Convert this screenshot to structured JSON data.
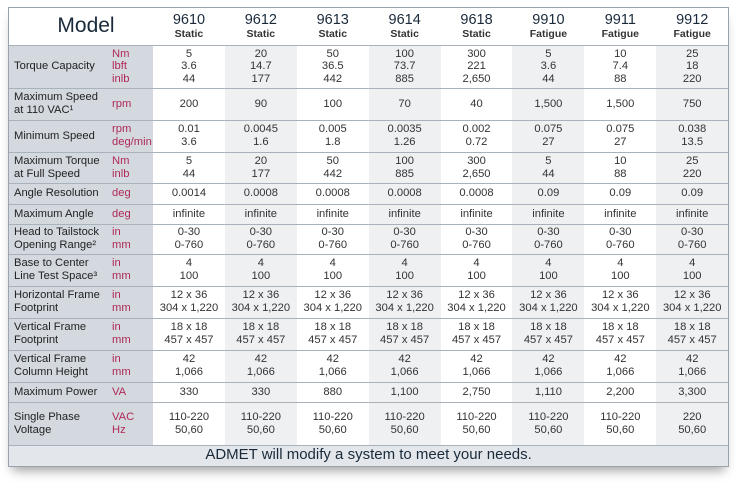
{
  "header": {
    "title": "Model",
    "models": [
      {
        "number": "9610",
        "type": "Static"
      },
      {
        "number": "9612",
        "type": "Static"
      },
      {
        "number": "9613",
        "type": "Static"
      },
      {
        "number": "9614",
        "type": "Static"
      },
      {
        "number": "9618",
        "type": "Static"
      },
      {
        "number": "9910",
        "type": "Fatigue"
      },
      {
        "number": "9911",
        "type": "Fatigue"
      },
      {
        "number": "9912",
        "type": "Fatigue"
      }
    ]
  },
  "rows": [
    {
      "label": "Torque Capacity",
      "units": "Nm\nlbft\ninlb",
      "values": [
        "5\n3.6\n44",
        "20\n14.7\n177",
        "50\n36.5\n442",
        "100\n73.7\n885",
        "300\n221\n2,650",
        "5\n3.6\n44",
        "10\n7.4\n88",
        "25\n18\n220"
      ]
    },
    {
      "label": "Maximum Speed\nat 110 VAC¹",
      "units": "rpm",
      "values": [
        "200",
        "90",
        "100",
        "70",
        "40",
        "1,500",
        "1,500",
        "750"
      ]
    },
    {
      "label": "Minimum Speed",
      "units": "rpm\ndeg/min",
      "values": [
        "0.01\n3.6",
        "0.0045\n1.6",
        "0.005\n1.8",
        "0.0035\n1.26",
        "0.002\n0.72",
        "0.075\n27",
        "0.075\n27",
        "0.038\n13.5"
      ]
    },
    {
      "label": "Maximum Torque\nat Full Speed",
      "units": "Nm\ninlb",
      "values": [
        "5\n44",
        "20\n177",
        "50\n442",
        "100\n885",
        "300\n2,650",
        "5\n44",
        "10\n88",
        "25\n220"
      ]
    },
    {
      "label": "Angle Resolution",
      "units": "deg",
      "values": [
        "0.0014",
        "0.0008",
        "0.0008",
        "0.0008",
        "0.0008",
        "0.09",
        "0.09",
        "0.09"
      ]
    },
    {
      "label": "Maximum Angle",
      "units": "deg",
      "values": [
        "infinite",
        "infinite",
        "infinite",
        "infinite",
        "infinite",
        "infinite",
        "infinite",
        "infinite"
      ]
    },
    {
      "label": "Head to Tailstock\nOpening Range²",
      "units": "in\nmm",
      "values": [
        "0-30\n0-760",
        "0-30\n0-760",
        "0-30\n0-760",
        "0-30\n0-760",
        "0-30\n0-760",
        "0-30\n0-760",
        "0-30\n0-760",
        "0-30\n0-760"
      ]
    },
    {
      "label": "Base to Center\nLine Test Space³",
      "units": "in\nmm",
      "values": [
        "4\n100",
        "4\n100",
        "4\n100",
        "4\n100",
        "4\n100",
        "4\n100",
        "4\n100",
        "4\n100"
      ]
    },
    {
      "label": "Horizontal Frame\nFootprint",
      "units": "in\nmm",
      "values": [
        "12 x 36\n304 x 1,220",
        "12 x 36\n304 x 1,220",
        "12 x 36\n304 x 1,220",
        "12 x 36\n304 x 1,220",
        "12 x 36\n304 x 1,220",
        "12 x 36\n304 x 1,220",
        "12 x 36\n304 x 1,220",
        "12 x 36\n304 x 1,220"
      ]
    },
    {
      "label": "Vertical Frame\nFootprint",
      "units": "in\nmm",
      "values": [
        "18 x 18\n457 x 457",
        "18 x 18\n457 x 457",
        "18 x 18\n457 x 457",
        "18 x 18\n457 x 457",
        "18 x 18\n457 x 457",
        "18 x 18\n457 x 457",
        "18 x 18\n457 x 457",
        "18 x 18\n457 x 457"
      ]
    },
    {
      "label": "Vertical Frame\nColumn Height",
      "units": "in\nmm",
      "values": [
        "42\n1,066",
        "42\n1,066",
        "42\n1,066",
        "42\n1,066",
        "42\n1,066",
        "42\n1,066",
        "42\n1,066",
        "42\n1,066"
      ]
    },
    {
      "label": "Maximum Power",
      "units": "VA",
      "values": [
        "330",
        "330",
        "880",
        "1,100",
        "2,750",
        "1,110",
        "2,200",
        "3,300"
      ]
    },
    {
      "label": "Single Phase\nVoltage",
      "units": "VAC\nHz",
      "values": [
        "110-220\n50,60",
        "110-220\n50,60",
        "110-220\n50,60",
        "110-220\n50,60",
        "110-220\n50,60",
        "110-220\n50,60",
        "110-220\n50,60",
        "220\n50,60"
      ]
    }
  ],
  "footer": "ADMET will modify a system to meet your needs.",
  "colors": {
    "unit_text": "#b0285a",
    "label_bg": "#d3d9df",
    "alt_column": "#eef0f2"
  }
}
